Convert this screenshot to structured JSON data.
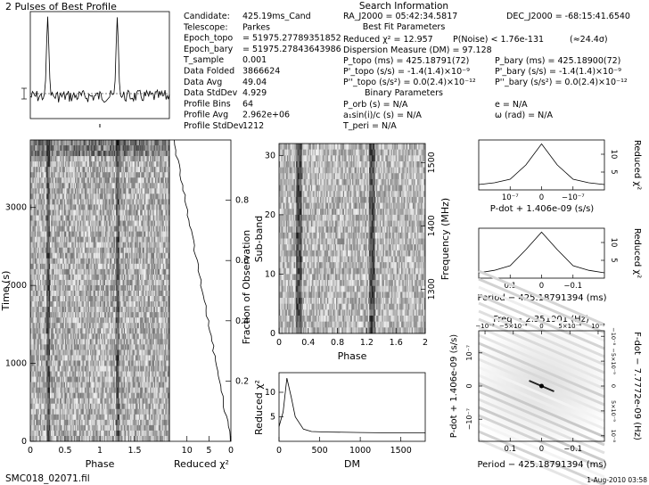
{
  "title": "2 Pulses of Best Profile",
  "footer": {
    "filename": "SMC018_02071.fil",
    "date": "1-Aug-2010 03:58"
  },
  "info_left": [
    [
      "Candidate:",
      "425.19ms_Cand"
    ],
    [
      "Telescope:",
      "Parkes"
    ],
    [
      "Epoch_topo",
      "= 51975.27789351852"
    ],
    [
      "Epoch_bary",
      "= 51975.27843643986"
    ],
    [
      "T_sample",
      "0.001"
    ],
    [
      "Data Folded",
      "3866624"
    ],
    [
      "Data Avg",
      "49.04"
    ],
    [
      "Data StdDev",
      "4.929"
    ],
    [
      "Profile Bins",
      "64"
    ],
    [
      "Profile Avg",
      "2.962e+06"
    ],
    [
      "Profile StdDev",
      "1212"
    ]
  ],
  "search": {
    "header": "Search Information",
    "ra": "RA_J2000 = 05:42:34.5817",
    "dec": "DEC_J2000 = -68:15:41.6540",
    "best_fit_header": "Best Fit Parameters",
    "chi2": "Reduced χ² = 12.957",
    "pnoise": "P(Noise) < 1.76e-131",
    "sigma": "(≈24.4σ)",
    "dm": "Dispersion Measure (DM) = 97.128",
    "p_topo": "P_topo (ms) = 425.18791(72)",
    "p_bary": "P_bary (ms) = 425.18900(72)",
    "pd_topo": "P'_topo (s/s) = -1.4(1.4)×10⁻⁹",
    "pd_bary": "P'_bary (s/s) = -1.4(1.4)×10⁻⁹",
    "pdd_topo": "P''_topo (s/s²) = 0.0(2.4)×10⁻¹²",
    "pdd_bary": "P''_bary (s/s²) = 0.0(2.4)×10⁻¹²",
    "binary_header": "Binary Parameters",
    "porb": "P_orb (s) = N/A",
    "ecc": "e = N/A",
    "asini": "a₁sin(i)/c (s) = N/A",
    "omega": "ω (rad) = N/A",
    "tperi": "T_peri = N/A"
  },
  "panels": {
    "time_phase": {
      "xlabel": "Phase",
      "ylabel": "Time (s)",
      "xticks": [
        "0",
        "0.5",
        "1",
        "1.5"
      ],
      "yticks": [
        "0",
        "1000",
        "2000",
        "3000"
      ]
    },
    "chi_time": {
      "xlabel": "Reduced χ²",
      "ylabel": "Fraction of Observation",
      "xticks": [
        "10",
        "5",
        "0"
      ],
      "yticks": [
        "0.2",
        "0.4",
        "0.6",
        "0.8"
      ]
    },
    "subband": {
      "xlabel": "Phase",
      "ylabel": "Sub-band",
      "ylabel2": "Frequency (MHz)",
      "xticks": [
        "0",
        "0.4",
        "0.8",
        "1.2",
        "1.6",
        "2"
      ],
      "yticks": [
        "0",
        "10",
        "20",
        "30"
      ],
      "y2ticks": [
        "1300",
        "1400",
        "1500"
      ]
    },
    "dm_chi": {
      "xlabel": "DM",
      "ylabel": "Reduced χ²",
      "xticks": [
        "0",
        "500",
        "1000",
        "1500"
      ],
      "yticks": [
        "5",
        "10"
      ]
    },
    "pdot_chi": {
      "xlabel": "P-dot + 1.406e-09 (s/s)",
      "ylabel": "Reduced χ²",
      "xticks": [
        "10⁻⁷",
        "0",
        "−10⁻⁷"
      ],
      "yticks": [
        "5",
        "10"
      ]
    },
    "period_chi": {
      "xlabel": "Period − 425.18791394 (ms)",
      "ylabel": "Reduced χ²",
      "xticks": [
        "0.1",
        "0",
        "−0.1"
      ],
      "yticks": [
        "5",
        "10"
      ]
    },
    "ppdot": {
      "top_label": "Freq − 2.351901 (Hz)",
      "xlabel": "Period − 425.18791394 (ms)",
      "ylabel": "P-dot + 1.406e-09 (s/s)",
      "ylabel2": "F-dot − 7.7772e-09 (Hz)",
      "xticks": [
        "0.1",
        "0",
        "−0.1"
      ],
      "topticks": [
        "−10⁻³",
        "−5×10⁻⁴",
        "0",
        "5×10⁻⁴",
        "10⁻³"
      ],
      "yticks": [
        "10⁻⁷",
        "0",
        "−10⁻⁷"
      ],
      "y2ticks": [
        "−10⁻⁸",
        "−5×10⁻⁹",
        "0",
        "5×10⁻⁹",
        "10⁻⁸"
      ]
    }
  },
  "chart_data": [
    {
      "type": "line",
      "title": "2 Pulses of Best Profile",
      "x": "phase 0–2",
      "peaks_at_phase": [
        0.25,
        1.25
      ],
      "note": "pulse profile repeated twice"
    },
    {
      "type": "line",
      "xlabel": "DM",
      "ylabel": "Reduced χ²",
      "x": [
        0,
        50,
        97,
        150,
        200,
        300,
        400,
        600,
        1000,
        1500,
        1800
      ],
      "values": [
        3,
        6,
        12.9,
        9,
        5,
        2.5,
        2,
        1.9,
        1.8,
        1.7,
        1.7
      ],
      "xlim": [
        0,
        1800
      ],
      "ylim": [
        0,
        14
      ]
    },
    {
      "type": "line",
      "xlabel": "Period − 425.18791394 (ms)",
      "ylabel": "Reduced χ²",
      "x": [
        0.2,
        0.1,
        0.05,
        0.01,
        0,
        -0.01,
        -0.05,
        -0.1,
        -0.2
      ],
      "values": [
        1.5,
        2.2,
        3.5,
        8,
        12.9,
        8,
        3.5,
        2.2,
        1.5
      ],
      "ylim": [
        0,
        14
      ]
    },
    {
      "type": "line",
      "xlabel": "P-dot + 1.406e-09 (s/s)",
      "ylabel": "Reduced χ²",
      "x": [
        2e-07,
        1e-07,
        5e-08,
        1e-08,
        0,
        -1e-08,
        -5e-08,
        -1e-07,
        -2e-07
      ],
      "values": [
        1.5,
        2.0,
        3.0,
        7,
        12.9,
        7,
        3.0,
        2.0,
        1.5
      ],
      "ylim": [
        0,
        14
      ]
    }
  ]
}
